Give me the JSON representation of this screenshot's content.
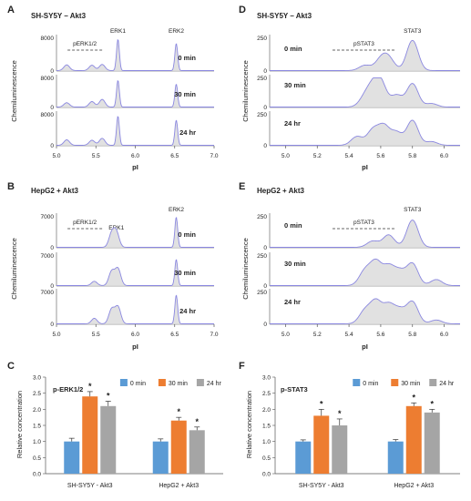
{
  "chart_data": [
    {
      "type": "line",
      "panel": "A",
      "title": "SH-SY5Y – Akt3",
      "xlabel": "pI",
      "ylabel": "Chemiluminescence",
      "xlim": [
        5.0,
        7.0
      ],
      "x_ticks": [
        "5.0",
        "5.5",
        "6.0",
        "6.5",
        "7.0"
      ],
      "ylim": [
        0,
        8000
      ],
      "y_tick_label": "8000",
      "bracket_label": "pERK1/2",
      "peak_labels": [
        {
          "text": "ERK1",
          "x": 5.78
        },
        {
          "text": "ERK2",
          "x": 6.52
        }
      ],
      "series": [
        {
          "name": "0 min",
          "peaks": [
            [
              5.13,
              1400
            ],
            [
              5.45,
              1300
            ],
            [
              5.58,
              1500
            ],
            [
              5.78,
              7600
            ],
            [
              6.52,
              6600
            ]
          ]
        },
        {
          "name": "30 min",
          "peaks": [
            [
              5.13,
              1200
            ],
            [
              5.45,
              1500
            ],
            [
              5.58,
              2100
            ],
            [
              5.78,
              7300
            ],
            [
              6.52,
              6300
            ]
          ]
        },
        {
          "name": "24 hr",
          "peaks": [
            [
              5.13,
              1400
            ],
            [
              5.45,
              1300
            ],
            [
              5.58,
              1800
            ],
            [
              5.78,
              7500
            ],
            [
              6.52,
              6500
            ]
          ]
        }
      ]
    },
    {
      "type": "line",
      "panel": "B",
      "title": "HepG2 + Akt3",
      "xlabel": "pI",
      "ylabel": "Chemiluminescence",
      "xlim": [
        5.0,
        7.0
      ],
      "x_ticks": [
        "5.0",
        "5.5",
        "6.0",
        "6.5",
        "7.0"
      ],
      "ylim": [
        0,
        7000
      ],
      "y_tick_label": "7000",
      "bracket_label": "pERK1/2",
      "peak_labels": [
        {
          "text": "ERK1",
          "x": 5.76
        },
        {
          "text": "ERK2",
          "x": 6.52
        }
      ],
      "series": [
        {
          "name": "0 min",
          "peaks": [
            [
              5.7,
              3000
            ],
            [
              5.76,
              3300
            ],
            [
              6.52,
              6800
            ]
          ]
        },
        {
          "name": "30 min",
          "peaks": [
            [
              5.48,
              1000
            ],
            [
              5.7,
              3300
            ],
            [
              5.78,
              3900
            ],
            [
              6.52,
              6100
            ]
          ]
        },
        {
          "name": "24 hr",
          "peaks": [
            [
              5.48,
              1200
            ],
            [
              5.7,
              3200
            ],
            [
              5.78,
              3700
            ],
            [
              6.52,
              6300
            ]
          ]
        }
      ]
    },
    {
      "type": "bar",
      "panel": "C",
      "title": "p-ERK1/2",
      "ylabel": "Relative  concentration",
      "ylim": [
        0,
        3.0
      ],
      "y_ticks": [
        "0.0",
        "0.5",
        "1.0",
        "1.5",
        "2.0",
        "2.5",
        "3.0"
      ],
      "categories": [
        "SH-SY5Y - Akt3",
        "HepG2 + Akt3"
      ],
      "series": [
        {
          "name": "0 min",
          "values": [
            1.0,
            1.0
          ],
          "errors": [
            0.1,
            0.08
          ],
          "color": "#5b9bd5"
        },
        {
          "name": "30 min",
          "values": [
            2.4,
            1.65
          ],
          "errors": [
            0.15,
            0.1
          ],
          "color": "#ed7d31"
        },
        {
          "name": "24 hr",
          "values": [
            2.1,
            1.35
          ],
          "errors": [
            0.15,
            0.1
          ],
          "color": "#a5a5a5"
        }
      ],
      "significance": [
        [
          false,
          true,
          true
        ],
        [
          false,
          true,
          true
        ]
      ],
      "sig_marker": "*"
    },
    {
      "type": "line",
      "panel": "D",
      "title": "SH-SY5Y – Akt3",
      "xlabel": "pI",
      "ylabel": "Chemiluminescence",
      "xlim": [
        4.9,
        6.1
      ],
      "x_ticks": [
        "5.0",
        "5.2",
        "5.4",
        "5.6",
        "5.8",
        "6.0"
      ],
      "ylim": [
        0,
        250
      ],
      "y_tick_label": "250",
      "bracket_label": "pSTAT3",
      "peak_labels": [
        {
          "text": "STAT3",
          "x": 5.8
        }
      ],
      "series": [
        {
          "name": "0 min",
          "peaks": [
            [
              5.5,
              40
            ],
            [
              5.6,
              80
            ],
            [
              5.65,
              90
            ],
            [
              5.8,
              230
            ]
          ]
        },
        {
          "name": "30 min",
          "peaks": [
            [
              5.5,
              80
            ],
            [
              5.55,
              140
            ],
            [
              5.6,
              200
            ],
            [
              5.7,
              100
            ],
            [
              5.8,
              200
            ],
            [
              5.92,
              30
            ]
          ]
        },
        {
          "name": "24 hr",
          "peaks": [
            [
              5.45,
              70
            ],
            [
              5.55,
              120
            ],
            [
              5.62,
              150
            ],
            [
              5.7,
              100
            ],
            [
              5.8,
              200
            ],
            [
              5.92,
              30
            ]
          ]
        }
      ]
    },
    {
      "type": "line",
      "panel": "E",
      "title": "HepG2 + Akt3",
      "xlabel": "pI",
      "ylabel": "Chemiluminescence",
      "xlim": [
        4.9,
        6.1
      ],
      "x_ticks": [
        "5.0",
        "5.2",
        "5.4",
        "5.6",
        "5.8",
        "6.0"
      ],
      "ylim": [
        0,
        250
      ],
      "y_tick_label": "250",
      "bracket_label": "pSTAT3",
      "peak_labels": [
        {
          "text": "STAT3",
          "x": 5.8
        }
      ],
      "series": [
        {
          "name": "0 min",
          "peaks": [
            [
              5.55,
              50
            ],
            [
              5.65,
              100
            ],
            [
              5.8,
              220
            ]
          ]
        },
        {
          "name": "30 min",
          "peaks": [
            [
              5.5,
              120
            ],
            [
              5.57,
              190
            ],
            [
              5.65,
              150
            ],
            [
              5.72,
              110
            ],
            [
              5.8,
              180
            ],
            [
              5.95,
              50
            ]
          ]
        },
        {
          "name": "24 hr",
          "peaks": [
            [
              5.5,
              100
            ],
            [
              5.57,
              170
            ],
            [
              5.65,
              140
            ],
            [
              5.72,
              100
            ],
            [
              5.8,
              170
            ],
            [
              5.95,
              30
            ]
          ]
        }
      ]
    },
    {
      "type": "bar",
      "panel": "F",
      "title": "p-STAT3",
      "ylabel": "Relative  concentration",
      "ylim": [
        0,
        3.0
      ],
      "y_ticks": [
        "0.0",
        "0.5",
        "1.0",
        "1.5",
        "2.0",
        "2.5",
        "3.0"
      ],
      "categories": [
        "SH-SY5Y - Akt3",
        "HepG2 + Akt3"
      ],
      "series": [
        {
          "name": "0 min",
          "values": [
            1.0,
            1.0
          ],
          "errors": [
            0.05,
            0.06
          ],
          "color": "#5b9bd5"
        },
        {
          "name": "30 min",
          "values": [
            1.8,
            2.1
          ],
          "errors": [
            0.2,
            0.1
          ],
          "color": "#ed7d31"
        },
        {
          "name": "24 hr",
          "values": [
            1.5,
            1.9
          ],
          "errors": [
            0.2,
            0.1
          ],
          "color": "#a5a5a5"
        }
      ],
      "significance": [
        [
          false,
          true,
          true
        ],
        [
          false,
          true,
          true
        ]
      ],
      "sig_marker": "*"
    }
  ],
  "colors": {
    "trace": "#8a87e0",
    "fill": "#d9d9d9",
    "axis": "#555555"
  }
}
